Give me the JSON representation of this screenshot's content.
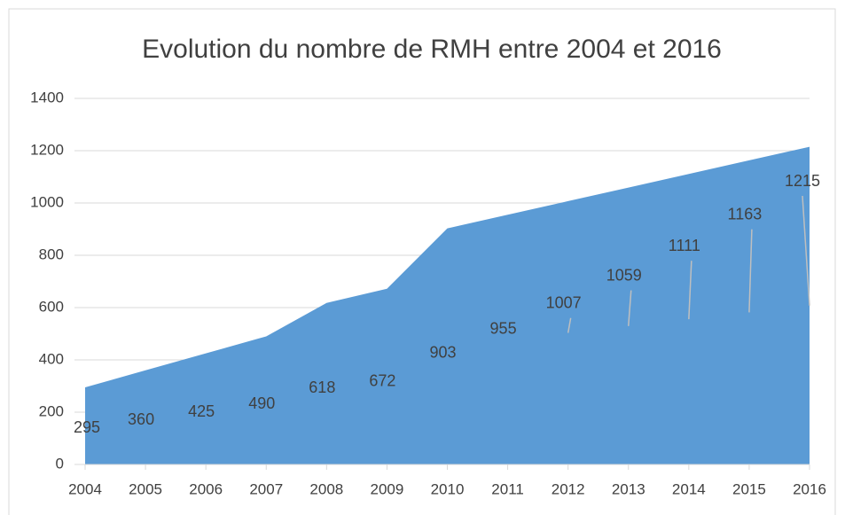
{
  "chart_data": {
    "type": "area",
    "title": "Evolution du nombre de RMH entre 2004 et 2016",
    "categories": [
      "2004",
      "2005",
      "2006",
      "2007",
      "2008",
      "2009",
      "2010",
      "2011",
      "2012",
      "2013",
      "2014",
      "2015",
      "2016"
    ],
    "values": [
      295,
      360,
      425,
      490,
      618,
      672,
      903,
      955,
      1007,
      1059,
      1111,
      1163,
      1215
    ],
    "color": "#5b9bd5",
    "ylim": [
      0,
      1400
    ],
    "yticks": [
      0,
      200,
      400,
      600,
      800,
      1000,
      1200,
      1400
    ],
    "grid": true
  }
}
